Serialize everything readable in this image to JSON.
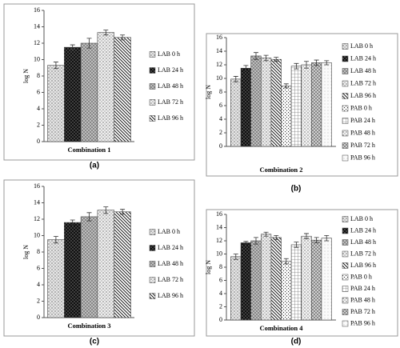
{
  "chart_data": [
    {
      "type": "bar",
      "panel_label": "(a)",
      "xlabel": "Combination 1",
      "ylabel": "log N",
      "ylim": [
        0,
        16
      ],
      "yticks": [
        0,
        2,
        4,
        6,
        8,
        10,
        12,
        14,
        16
      ],
      "series": [
        {
          "name": "LAB 0 h",
          "color": "#e6e6e6",
          "values": [
            9.3
          ],
          "errors": [
            0.4
          ]
        },
        {
          "name": "LAB 24 h",
          "color": "#111111",
          "values": [
            11.5
          ],
          "errors": [
            0.3
          ]
        },
        {
          "name": "LAB 48 h",
          "color": "#bdbdbd",
          "values": [
            12.0
          ],
          "errors": [
            0.6
          ]
        },
        {
          "name": "LAB 72 h",
          "color": "#efefef",
          "values": [
            13.3
          ],
          "errors": [
            0.3
          ]
        },
        {
          "name": "LAB 96 h",
          "color": "#ffffff",
          "values": [
            12.7
          ],
          "errors": [
            0.3
          ]
        }
      ]
    },
    {
      "type": "bar",
      "panel_label": "(b)",
      "xlabel": "Combination 2",
      "ylabel": "log N",
      "ylim": [
        0,
        16
      ],
      "yticks": [
        0,
        2,
        4,
        6,
        8,
        10,
        12,
        14,
        16
      ],
      "series": [
        {
          "name": "LAB 0 h",
          "color": "#e6e6e6",
          "values": [
            9.9
          ],
          "errors": [
            0.4
          ]
        },
        {
          "name": "LAB 24 h",
          "color": "#111111",
          "values": [
            11.5
          ],
          "errors": [
            0.4
          ]
        },
        {
          "name": "LAB 48 h",
          "color": "#bdbdbd",
          "values": [
            13.3
          ],
          "errors": [
            0.5
          ]
        },
        {
          "name": "LAB 72 h",
          "color": "#efefef",
          "values": [
            13.0
          ],
          "errors": [
            0.4
          ]
        },
        {
          "name": "LAB 96 h",
          "color": "#ffffff",
          "values": [
            12.8
          ],
          "errors": [
            0.3
          ]
        },
        {
          "name": "PAB 0 h",
          "color": "#ffffff",
          "values": [
            8.9
          ],
          "errors": [
            0.3
          ]
        },
        {
          "name": "PAB 24 h",
          "color": "#ffffff",
          "values": [
            11.8
          ],
          "errors": [
            0.4
          ]
        },
        {
          "name": "PAB 48 h",
          "color": "#f4f4f4",
          "values": [
            12.0
          ],
          "errors": [
            0.5
          ]
        },
        {
          "name": "PAB 72 h",
          "color": "#cfcfcf",
          "values": [
            12.3
          ],
          "errors": [
            0.4
          ]
        },
        {
          "name": "PAB 96 h",
          "color": "#fafafa",
          "values": [
            12.3
          ],
          "errors": [
            0.3
          ]
        }
      ]
    },
    {
      "type": "bar",
      "panel_label": "(c)",
      "xlabel": "Combination 3",
      "ylabel": "log N",
      "ylim": [
        0,
        16
      ],
      "yticks": [
        0,
        2,
        4,
        6,
        8,
        10,
        12,
        14,
        16
      ],
      "series": [
        {
          "name": "LAB 0 h",
          "color": "#e6e6e6",
          "values": [
            9.5
          ],
          "errors": [
            0.4
          ]
        },
        {
          "name": "LAB 24 h",
          "color": "#111111",
          "values": [
            11.6
          ],
          "errors": [
            0.3
          ]
        },
        {
          "name": "LAB 48 h",
          "color": "#bdbdbd",
          "values": [
            12.3
          ],
          "errors": [
            0.5
          ]
        },
        {
          "name": "LAB 72 h",
          "color": "#efefef",
          "values": [
            13.1
          ],
          "errors": [
            0.4
          ]
        },
        {
          "name": "LAB 96 h",
          "color": "#ffffff",
          "values": [
            12.9
          ],
          "errors": [
            0.3
          ]
        }
      ]
    },
    {
      "type": "bar",
      "panel_label": "(d)",
      "xlabel": "Combination 4",
      "ylabel": "log N",
      "ylim": [
        0,
        16
      ],
      "yticks": [
        0,
        2,
        4,
        6,
        8,
        10,
        12,
        14,
        16
      ],
      "series": [
        {
          "name": "LAB 0 h",
          "color": "#e6e6e6",
          "values": [
            9.6
          ],
          "errors": [
            0.4
          ]
        },
        {
          "name": "LAB 24 h",
          "color": "#111111",
          "values": [
            11.7
          ],
          "errors": [
            0.2
          ]
        },
        {
          "name": "LAB 48 h",
          "color": "#bdbdbd",
          "values": [
            12.0
          ],
          "errors": [
            0.5
          ]
        },
        {
          "name": "LAB 72 h",
          "color": "#efefef",
          "values": [
            13.0
          ],
          "errors": [
            0.3
          ]
        },
        {
          "name": "LAB 96 h",
          "color": "#ffffff",
          "values": [
            12.5
          ],
          "errors": [
            0.3
          ]
        },
        {
          "name": "PAB 0 h",
          "color": "#ffffff",
          "values": [
            8.9
          ],
          "errors": [
            0.4
          ]
        },
        {
          "name": "PAB 24 h",
          "color": "#ffffff",
          "values": [
            11.4
          ],
          "errors": [
            0.4
          ]
        },
        {
          "name": "PAB 48 h",
          "color": "#f4f4f4",
          "values": [
            12.7
          ],
          "errors": [
            0.4
          ]
        },
        {
          "name": "PAB 72 h",
          "color": "#cfcfcf",
          "values": [
            12.1
          ],
          "errors": [
            0.4
          ]
        },
        {
          "name": "PAB 96 h",
          "color": "#fafafa",
          "values": [
            12.4
          ],
          "errors": [
            0.4
          ]
        }
      ]
    }
  ]
}
